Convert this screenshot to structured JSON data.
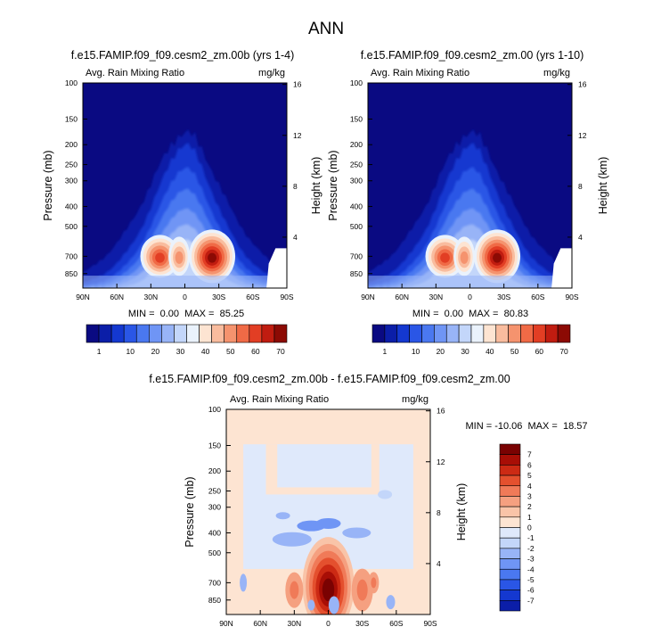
{
  "figure": {
    "title": "ANN",
    "colors": {
      "abs": [
        "#0a0a82",
        "#0b1ea8",
        "#1438d0",
        "#2a56e6",
        "#4a78f0",
        "#6f95f5",
        "#98b4f7",
        "#c3d6fa",
        "#eaf2fc",
        "#fde4d2",
        "#f9bc9e",
        "#f5936e",
        "#f06a46",
        "#e23e24",
        "#c01c10",
        "#8c0a04",
        "#6e0202"
      ],
      "diff": [
        "#0a0a82",
        "#0b1ea8",
        "#1438d0",
        "#2a56e6",
        "#4a78f0",
        "#6f95f5",
        "#98b4f7",
        "#c3d6fa",
        "#dfe9fb",
        "#fde4d2",
        "#f9c4a8",
        "#f5a080",
        "#f07a58",
        "#e4502e",
        "#cc2a14",
        "#a80e06",
        "#7a0202"
      ]
    }
  },
  "chart_data": [
    {
      "type": "heatmap",
      "id": "panel-a",
      "title": "f.e15.FAMIP.f09_f09.cesm2_zm.00b (yrs 1-4)",
      "field_label": "Avg. Rain Mixing Ratio",
      "units": "mg/kg",
      "ylabel": "Pressure (mb)",
      "ylabel_right": "Height (km)",
      "x_ticks": [
        "90N",
        "60N",
        "30N",
        "0",
        "30S",
        "60S",
        "90S"
      ],
      "x_range": [
        90,
        -90
      ],
      "y_ticks": [
        "100",
        "150",
        "200",
        "250",
        "300",
        "400",
        "500",
        "700",
        "850"
      ],
      "y_tick_values": [
        100,
        150,
        200,
        250,
        300,
        400,
        500,
        700,
        850
      ],
      "y_range": [
        100,
        1000
      ],
      "right_ticks": [
        "16",
        "12",
        "8",
        "4"
      ],
      "right_tick_values": [
        16,
        12,
        8,
        4
      ],
      "stats": "MIN =  0.00  MAX =  85.25",
      "min": 0.0,
      "max": 85.25,
      "contour_levels": [
        1,
        10,
        20,
        30,
        40,
        50,
        60,
        70
      ],
      "colorbar_labels": [
        "1",
        "10",
        "20",
        "30",
        "40",
        "50",
        "60",
        "70"
      ],
      "peaks": [
        {
          "lat": -24,
          "p": 700,
          "value": 85
        },
        {
          "lat": 22,
          "p": 700,
          "value": 62
        },
        {
          "lat": 5,
          "p": 700,
          "value": 42
        }
      ]
    },
    {
      "type": "heatmap",
      "id": "panel-b",
      "title": "f.e15.FAMIP.f09_f09.cesm2_zm.00 (yrs 1-10)",
      "field_label": "Avg. Rain Mixing Ratio",
      "units": "mg/kg",
      "ylabel": "Pressure (mb)",
      "ylabel_right": "Height (km)",
      "x_ticks": [
        "90N",
        "60N",
        "30N",
        "0",
        "30S",
        "60S",
        "90S"
      ],
      "x_range": [
        90,
        -90
      ],
      "y_ticks": [
        "100",
        "150",
        "200",
        "250",
        "300",
        "400",
        "500",
        "700",
        "850"
      ],
      "y_tick_values": [
        100,
        150,
        200,
        250,
        300,
        400,
        500,
        700,
        850
      ],
      "y_range": [
        100,
        1000
      ],
      "right_ticks": [
        "16",
        "12",
        "8",
        "4"
      ],
      "right_tick_values": [
        16,
        12,
        8,
        4
      ],
      "stats": "MIN =  0.00  MAX =  80.83",
      "min": 0.0,
      "max": 80.83,
      "contour_levels": [
        1,
        10,
        20,
        30,
        40,
        50,
        60,
        70
      ],
      "colorbar_labels": [
        "1",
        "10",
        "20",
        "30",
        "40",
        "50",
        "60",
        "70"
      ],
      "peaks": [
        {
          "lat": -24,
          "p": 700,
          "value": 80
        },
        {
          "lat": 22,
          "p": 700,
          "value": 55
        },
        {
          "lat": 5,
          "p": 700,
          "value": 38
        }
      ]
    },
    {
      "type": "heatmap",
      "id": "panel-diff",
      "title": "f.e15.FAMIP.f09_f09.cesm2_zm.00b - f.e15.FAMIP.f09_f09.cesm2_zm.00",
      "field_label": "Avg. Rain Mixing Ratio",
      "units": "mg/kg",
      "ylabel": "Pressure (mb)",
      "ylabel_right": "Height (km)",
      "x_ticks": [
        "90N",
        "60N",
        "30N",
        "0",
        "30S",
        "60S",
        "90S"
      ],
      "x_range": [
        90,
        -90
      ],
      "y_ticks": [
        "100",
        "150",
        "200",
        "250",
        "300",
        "400",
        "500",
        "700",
        "850"
      ],
      "y_tick_values": [
        100,
        150,
        200,
        250,
        300,
        400,
        500,
        700,
        850
      ],
      "y_range": [
        100,
        1000
      ],
      "right_ticks": [
        "16",
        "12",
        "8",
        "4"
      ],
      "right_tick_values": [
        16,
        12,
        8,
        4
      ],
      "stats": "MIN = -10.06  MAX =  18.57",
      "min": -10.06,
      "max": 18.57,
      "contour_levels": [
        -7,
        -6,
        -5,
        -4,
        -3,
        -2,
        -1,
        0,
        1,
        2,
        3,
        4,
        5,
        6,
        7
      ],
      "colorbar_labels": [
        "7",
        "6",
        "5",
        "4",
        "3",
        "2",
        "1",
        "0",
        "-1",
        "-2",
        "-3",
        "-4",
        "-5",
        "-6",
        "-7"
      ],
      "peaks": [
        {
          "lat": 0,
          "p": 700,
          "value": 18.57
        },
        {
          "lat": -30,
          "p": 700,
          "value": 5
        },
        {
          "lat": 25,
          "p": 520,
          "value": -4
        }
      ]
    }
  ]
}
